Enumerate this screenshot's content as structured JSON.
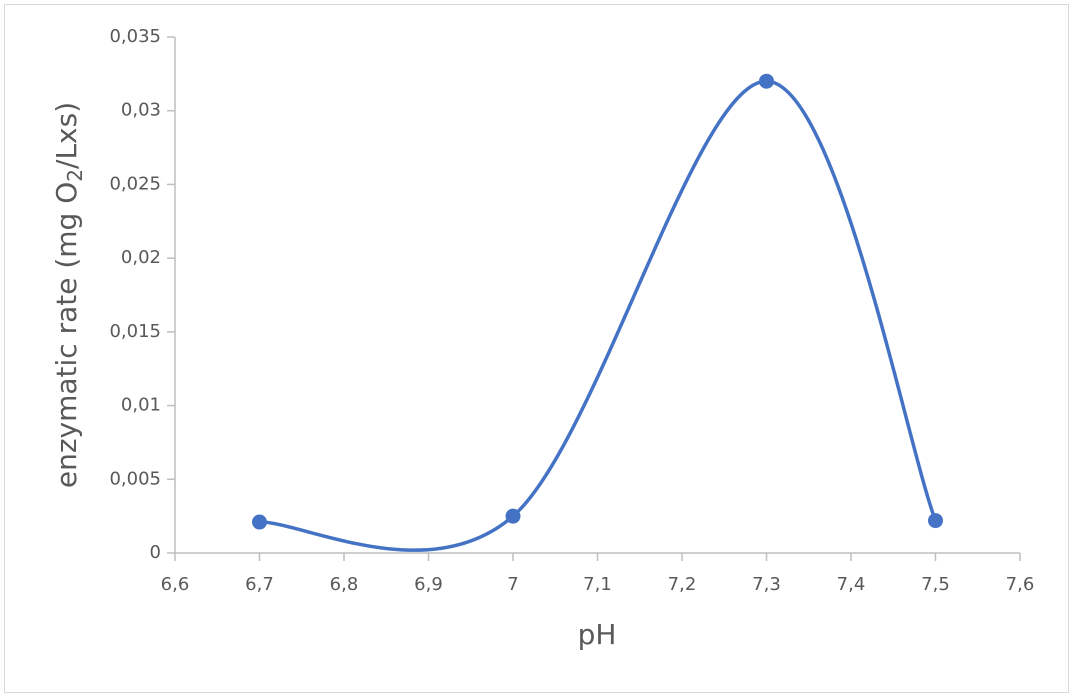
{
  "chart_data": {
    "type": "line",
    "x_label": "pH",
    "y_label": [
      "enzymatic rate (mg O",
      "2",
      "/Lxs)"
    ],
    "x": [
      6.7,
      7.0,
      7.3,
      7.5
    ],
    "values": [
      0.0021,
      0.0025,
      0.032,
      0.0022
    ],
    "color": "#4472c4",
    "smooth": true,
    "markers": true,
    "xlim": [
      6.6,
      7.6
    ],
    "xticks": [
      {
        "value": 6.6,
        "label": "6,6"
      },
      {
        "value": 6.7,
        "label": "6,7"
      },
      {
        "value": 6.8,
        "label": "6,8"
      },
      {
        "value": 6.9,
        "label": "6,9"
      },
      7,
      {
        "value": 7.1,
        "label": "7,1"
      },
      {
        "value": 7.2,
        "label": "7,2"
      },
      {
        "value": 7.3,
        "label": "7,3"
      },
      {
        "value": 7.4,
        "label": "7,4"
      },
      {
        "value": 7.5,
        "label": "7,5"
      },
      {
        "value": 7.6,
        "label": "7,6"
      }
    ],
    "ylim": [
      0,
      0.035
    ],
    "yticks": [
      0,
      {
        "value": 0.005,
        "label": "0,005"
      },
      {
        "value": 0.01,
        "label": "0,01"
      },
      {
        "value": 0.015,
        "label": "0,015"
      },
      {
        "value": 0.02,
        "label": "0,02"
      },
      {
        "value": 0.025,
        "label": "0,025"
      },
      {
        "value": 0.03,
        "label": "0,03"
      },
      {
        "value": 0.035,
        "label": "0,035"
      }
    ]
  }
}
